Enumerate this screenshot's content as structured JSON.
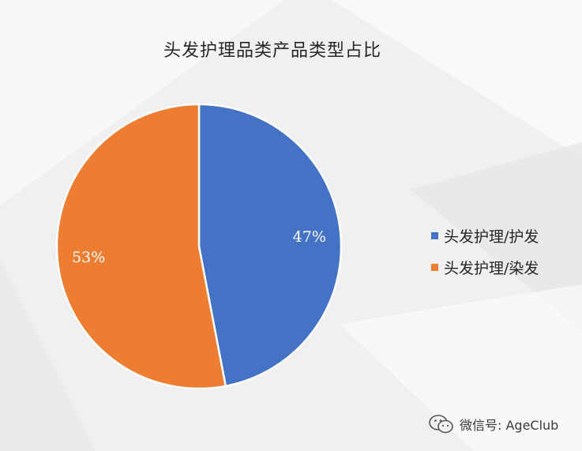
{
  "chart_data": {
    "type": "pie",
    "title": "头发护理品类产品类型占比",
    "slices": [
      {
        "label": "头发护理/护发",
        "value": 47,
        "value_label": "47%",
        "color": "#4472c4"
      },
      {
        "label": "头发护理/染发",
        "value": 53,
        "value_label": "53%",
        "color": "#ed7d31"
      }
    ],
    "start_angle_deg": 0,
    "direction": "clockwise",
    "legend_position": "right"
  },
  "watermark": {
    "text": "微信号: AgeClub",
    "icon": "wechat-icon"
  }
}
